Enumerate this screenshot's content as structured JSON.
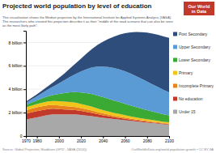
{
  "chart_data": {
    "type": "area",
    "title": "Projected world population by level of education",
    "subtitle": "This visualization shows the Median projection by the International Institute for Applied Systems Analysis (IIASA).\nThe researchers who created this projection describe it as their \"middle of the road scenario that can also be seen\nas the most likely path\".",
    "stacked": true,
    "grid": true,
    "legend": "right",
    "x": [
      1970,
      1975,
      1980,
      1985,
      1990,
      1995,
      2000,
      2005,
      2010,
      2015,
      2020,
      2025,
      2030,
      2035,
      2040,
      2045,
      2050,
      2055,
      2060,
      2065,
      2070,
      2075,
      2080,
      2085,
      2090,
      2095,
      2100
    ],
    "xlim": [
      1970,
      2100
    ],
    "xticks": [
      1970,
      1980,
      2000,
      2020,
      2040,
      2060,
      2080,
      2100
    ],
    "ylim": [
      0,
      9.0
    ],
    "yticks": [
      0,
      {
        "value": 2,
        "label": "2 billion"
      },
      {
        "value": 4,
        "label": "4 billion"
      },
      {
        "value": 6,
        "label": "6 billion"
      },
      {
        "value": 8,
        "label": "8 billion"
      }
    ],
    "series": [
      {
        "name": "Under 15",
        "color": "#a8a8a8",
        "values": [
          1.4,
          1.5,
          1.6,
          1.7,
          1.8,
          1.85,
          1.85,
          1.85,
          1.85,
          1.85,
          1.8,
          1.75,
          1.7,
          1.62,
          1.55,
          1.5,
          1.45,
          1.4,
          1.35,
          1.3,
          1.25,
          1.2,
          1.15,
          1.1,
          1.05,
          1.0,
          0.96
        ]
      },
      {
        "name": "No education",
        "color": "#c1392b",
        "values": [
          0.5,
          0.52,
          0.53,
          0.52,
          0.5,
          0.48,
          0.45,
          0.42,
          0.4,
          0.37,
          0.34,
          0.31,
          0.28,
          0.25,
          0.22,
          0.19,
          0.16,
          0.14,
          0.12,
          0.1,
          0.09,
          0.08,
          0.07,
          0.06,
          0.06,
          0.05,
          0.05
        ]
      },
      {
        "name": "Incomplete Primary",
        "color": "#e8821e",
        "values": [
          0.3,
          0.31,
          0.32,
          0.33,
          0.33,
          0.32,
          0.31,
          0.3,
          0.28,
          0.26,
          0.24,
          0.22,
          0.2,
          0.18,
          0.16,
          0.14,
          0.12,
          0.11,
          0.1,
          0.09,
          0.08,
          0.07,
          0.07,
          0.06,
          0.06,
          0.05,
          0.05
        ]
      },
      {
        "name": "Primary",
        "color": "#f0c419",
        "values": [
          0.25,
          0.27,
          0.29,
          0.31,
          0.33,
          0.35,
          0.37,
          0.38,
          0.38,
          0.37,
          0.36,
          0.35,
          0.33,
          0.31,
          0.29,
          0.27,
          0.25,
          0.23,
          0.21,
          0.19,
          0.17,
          0.16,
          0.15,
          0.14,
          0.13,
          0.12,
          0.11
        ]
      },
      {
        "name": "Lower Secondary",
        "color": "#3aaa35",
        "values": [
          0.2,
          0.25,
          0.3,
          0.37,
          0.44,
          0.52,
          0.62,
          0.72,
          0.82,
          0.9,
          0.98,
          1.04,
          1.08,
          1.1,
          1.1,
          1.08,
          1.05,
          1.02,
          0.98,
          0.93,
          0.88,
          0.83,
          0.78,
          0.73,
          0.68,
          0.64,
          0.6
        ]
      },
      {
        "name": "Upper Secondary",
        "color": "#5b9bd5",
        "values": [
          0.2,
          0.27,
          0.35,
          0.46,
          0.58,
          0.72,
          0.9,
          1.1,
          1.32,
          1.55,
          1.8,
          2.05,
          2.28,
          2.48,
          2.62,
          2.72,
          2.78,
          2.8,
          2.78,
          2.73,
          2.65,
          2.55,
          2.44,
          2.32,
          2.2,
          2.08,
          1.97
        ]
      },
      {
        "name": "Post Secondary",
        "color": "#2e4d7b",
        "values": [
          0.1,
          0.13,
          0.17,
          0.22,
          0.28,
          0.36,
          0.46,
          0.58,
          0.73,
          0.9,
          1.1,
          1.33,
          1.58,
          1.85,
          2.12,
          2.4,
          2.68,
          2.97,
          3.25,
          3.52,
          3.77,
          3.99,
          4.18,
          4.34,
          4.47,
          4.58,
          4.66
        ]
      }
    ],
    "annotations": [
      "Source: Global Projection, Maddison (GPI2 - IIASA (2014))",
      "OurWorldInData.org/world-population-growth • CC BY-SA",
      "Our World",
      "in Data"
    ]
  }
}
